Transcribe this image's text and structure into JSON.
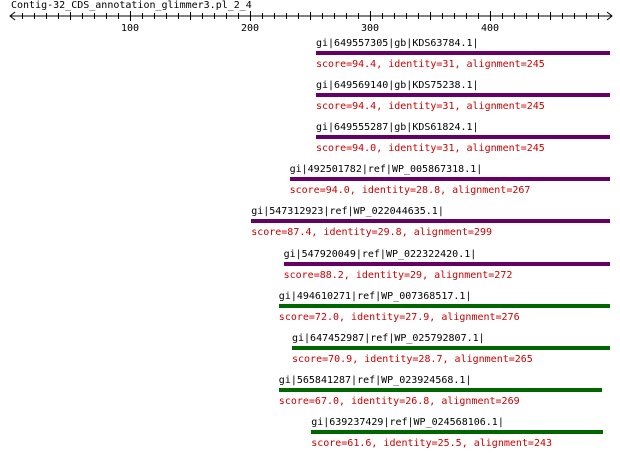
{
  "track": {
    "title": "Contig-32_CDS_annotation_glimmer3.pl_2_4",
    "ruler_ticks": [
      "100",
      "200",
      "300",
      "400"
    ],
    "ruler_domain": [
      0,
      500
    ]
  },
  "colors": {
    "background": "#ffffff",
    "ruler": "#000000",
    "label": "#000000",
    "stats": "#cc0000",
    "bar_purple": "#660066",
    "bar_green": "#006600"
  },
  "hits": [
    {
      "name": "gi|649557305|gb|KDS63784.1|",
      "stats": "score=94.4, identity=31, alignment=245",
      "color": "purple",
      "start": 255,
      "end": 500
    },
    {
      "name": "gi|649569140|gb|KDS75238.1|",
      "stats": "score=94.4, identity=31, alignment=245",
      "color": "purple",
      "start": 255,
      "end": 500
    },
    {
      "name": "gi|649555287|gb|KDS61824.1|",
      "stats": "score=94.0, identity=31, alignment=245",
      "color": "purple",
      "start": 255,
      "end": 500
    },
    {
      "name": "gi|492501782|ref|WP_005867318.1|",
      "stats": "score=94.0, identity=28.8, alignment=267",
      "color": "purple",
      "start": 233,
      "end": 500
    },
    {
      "name": "gi|547312923|ref|WP_022044635.1|",
      "stats": "score=87.4, identity=29.8, alignment=299",
      "color": "purple",
      "start": 201,
      "end": 500
    },
    {
      "name": "gi|547920049|ref|WP_022322420.1|",
      "stats": "score=88.2, identity=29, alignment=272",
      "color": "purple",
      "start": 228,
      "end": 500
    },
    {
      "name": "gi|494610271|ref|WP_007368517.1|",
      "stats": "score=72.0, identity=27.9, alignment=276",
      "color": "green",
      "start": 224,
      "end": 500
    },
    {
      "name": "gi|647452987|ref|WP_025792807.1|",
      "stats": "score=70.9, identity=28.7, alignment=265",
      "color": "green",
      "start": 235,
      "end": 500
    },
    {
      "name": "gi|565841287|ref|WP_023924568.1|",
      "stats": "score=67.0, identity=26.8, alignment=269",
      "color": "green",
      "start": 224,
      "end": 493
    },
    {
      "name": "gi|639237429|ref|WP_024568106.1|",
      "stats": "score=61.6, identity=25.5, alignment=243",
      "color": "green",
      "start": 251,
      "end": 494
    }
  ]
}
